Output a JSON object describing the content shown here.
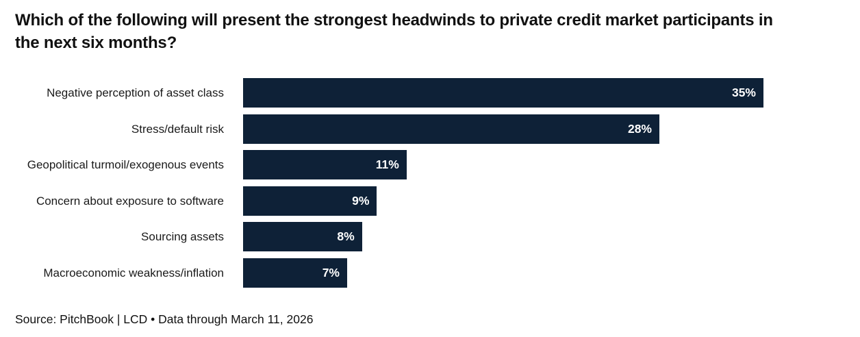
{
  "header": {
    "title": "Which of the following will present the strongest headwinds to private credit market participants in the next six months?",
    "title_lines": [
      "Which of the following will present the strongest headwinds to private credit market participants in",
      "the next six months?"
    ]
  },
  "chart_data": {
    "type": "bar",
    "orientation": "horizontal",
    "title": "Which of the following will present the strongest headwinds to private credit market participants in the next six months?",
    "categories": [
      "Negative perception of asset class",
      "Stress/default risk",
      "Geopolitical turmoil/exogenous events",
      "Concern about exposure to software",
      "Sourcing assets",
      "Macroeconomic weakness/inflation"
    ],
    "values": [
      35,
      28,
      11,
      9,
      8,
      7
    ],
    "value_labels": [
      "35%",
      "28%",
      "11%",
      "9%",
      "8%",
      "7%"
    ],
    "xlabel": "",
    "ylabel": "",
    "xlim": [
      0,
      40
    ],
    "grid": false,
    "legend_position": "none",
    "bar_color": "#0e2137",
    "value_label_color": "#ffffff"
  },
  "footer": {
    "source": "Source: PitchBook | LCD • Data through March 11, 2026"
  }
}
